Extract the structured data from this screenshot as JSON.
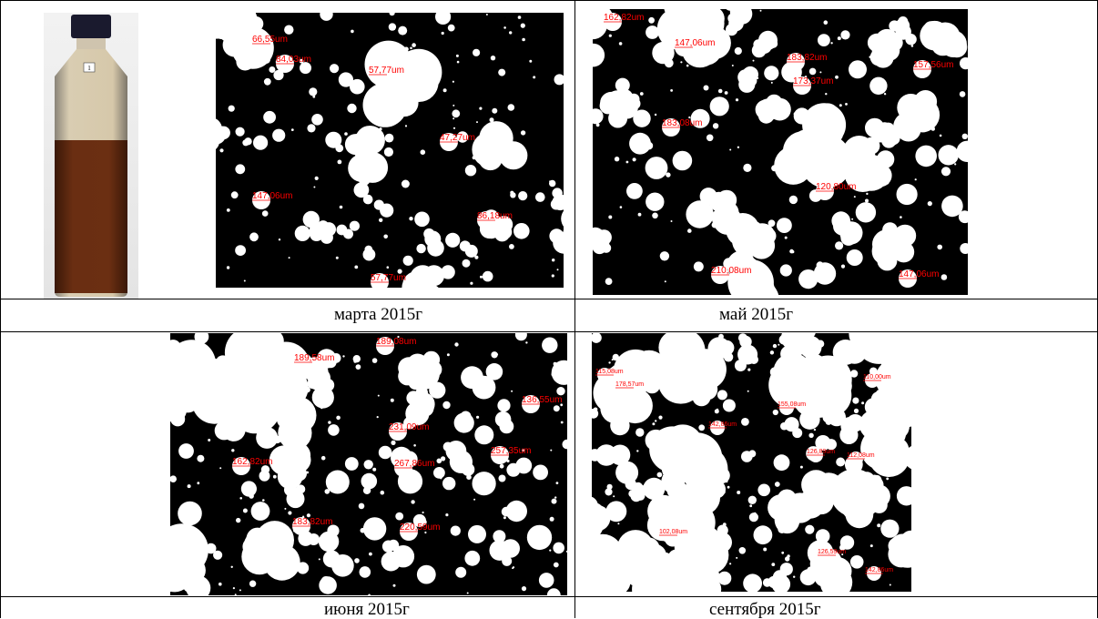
{
  "captions": {
    "march": "марта 2015г",
    "may": "май 2015г",
    "june": "июня 2015г",
    "september": "сентября 2015г"
  },
  "bottle": {
    "label": "1"
  },
  "panels": {
    "march": [
      "66,55um",
      "84,03um",
      "57,77um",
      "47,27um",
      "147,06um",
      "86,18um",
      "57,77um"
    ],
    "may": [
      "162,82um",
      "147,06um",
      "183,82um",
      "157,56um",
      "173,37um",
      "183,08um",
      "120,80um",
      "210,08um",
      "147,06um"
    ],
    "june": [
      "189,08um",
      "189,58um",
      "136,55um",
      "231,09um",
      "257,35um",
      "162,82um",
      "267,86um",
      "183,82um",
      "220,59um"
    ],
    "september": [
      "115,08um",
      "178,57um",
      "110,00um",
      "155,08um",
      "142,86um",
      "126,89um",
      "112,08um",
      "102,08um",
      "126,59um",
      "142,86um"
    ]
  },
  "colors": {
    "particle": "#ffffff",
    "background": "#000000",
    "annotation": "#ff0000"
  }
}
